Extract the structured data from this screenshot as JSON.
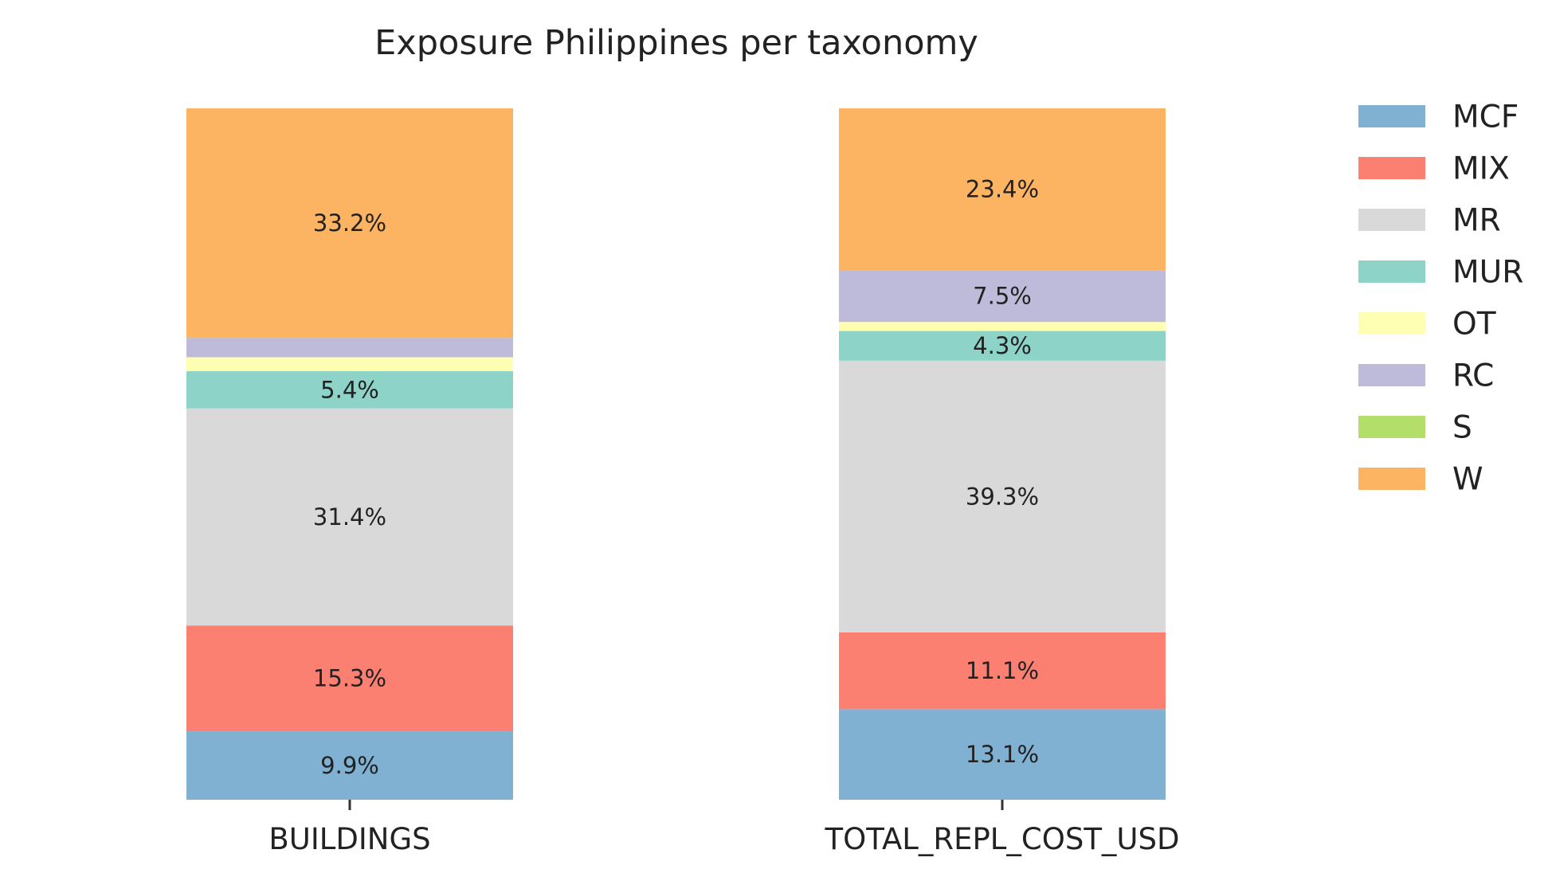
{
  "chart_data": {
    "type": "bar",
    "stacked": true,
    "normalized": true,
    "title": "Exposure Philippines per taxonomy",
    "xlabel": "",
    "ylabel": "",
    "ylim": [
      0,
      100
    ],
    "grid": false,
    "legend_position": "right",
    "categories": [
      "BUILDINGS",
      "TOTAL_REPL_COST_USD"
    ],
    "series": [
      {
        "name": "MCF",
        "color": "#80b1d3",
        "values": [
          9.9,
          13.1
        ],
        "labels": [
          "9.9%",
          "13.1%"
        ]
      },
      {
        "name": "MIX",
        "color": "#fb8072",
        "values": [
          15.3,
          11.1
        ],
        "labels": [
          "15.3%",
          "11.1%"
        ]
      },
      {
        "name": "MR",
        "color": "#d9d9d9",
        "values": [
          31.4,
          39.3
        ],
        "labels": [
          "31.4%",
          "39.3%"
        ]
      },
      {
        "name": "MUR",
        "color": "#8dd3c7",
        "values": [
          5.4,
          4.3
        ],
        "labels": [
          "5.4%",
          "4.3%"
        ]
      },
      {
        "name": "OT",
        "color": "#ffffb3",
        "values": [
          2.0,
          1.3
        ],
        "labels": [
          "",
          ""
        ]
      },
      {
        "name": "RC",
        "color": "#bebada",
        "values": [
          2.8,
          7.5
        ],
        "labels": [
          "",
          "7.5%"
        ]
      },
      {
        "name": "S",
        "color": "#b3de69",
        "values": [
          0.0,
          0.0
        ],
        "labels": [
          "",
          ""
        ]
      },
      {
        "name": "W",
        "color": "#fdb462",
        "values": [
          33.2,
          23.4
        ],
        "labels": [
          "33.2%",
          "23.4%"
        ]
      }
    ]
  }
}
